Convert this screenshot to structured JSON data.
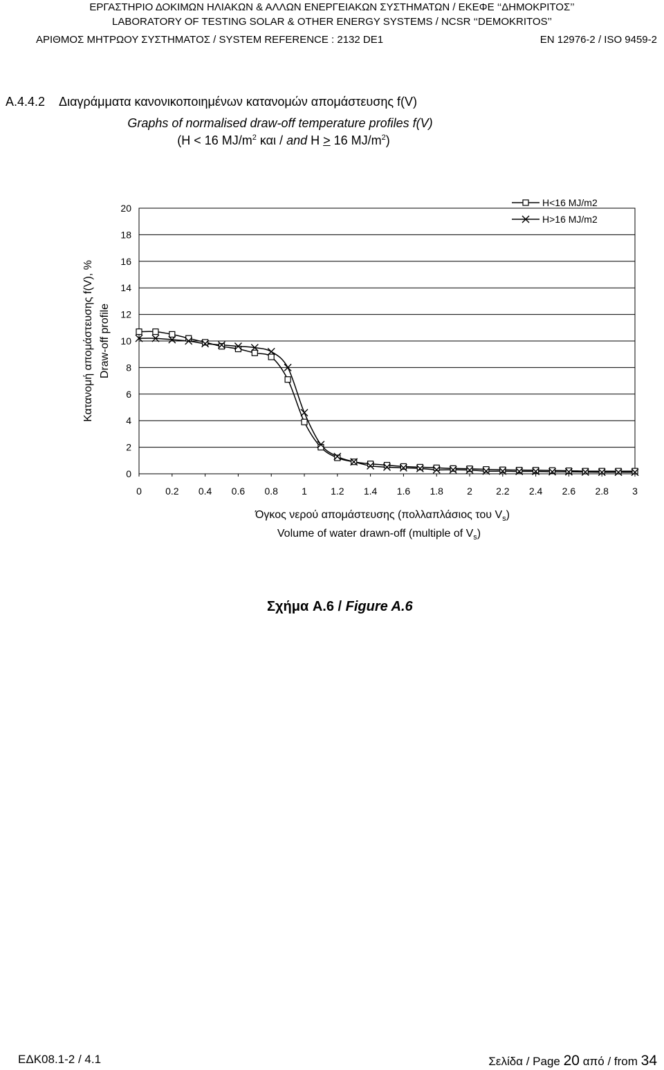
{
  "header": {
    "line1": "ΕΡΓΑΣΤΗΡΙΟ ΔΟΚΙΜΩΝ ΗΛΙΑΚΩΝ & ΑΛΛΩΝ ΕΝΕΡΓΕΙΑΚΩΝ ΣΥΣΤΗΜΑΤΩΝ / ΕΚΕΦΕ ‘‘ΔΗΜΟΚΡΙΤΟΣ’’",
    "line2": "LABORATORY OF TESTING SOLAR & OTHER ENERGY SYSTEMS / NCSR ‘‘DEMOKRITOS’’",
    "line3_left": "ΑΡΙΘΜΟΣ ΜΗΤΡΩΟΥ ΣΥΣΤΗΜΑΤΟΣ / SYSTEM REFERENCE : 2132 DE1",
    "line3_right": "EN 12976-2 / ISO 9459-2"
  },
  "section": {
    "number": "A.4.4.2",
    "title_gr": "Διαγράμματα κανονικοποιημένων κατανομών απομάστευσης f(V)",
    "title_en": "Graphs of normalised draw-off temperature profiles f(V)",
    "cond_prefix": "(H < 16 MJ/m",
    "cond_sup1": "2",
    "cond_mid": " και / ",
    "cond_and": "and",
    "cond_h": " H ",
    "cond_ge": ">",
    "cond_val": " 16 MJ/m",
    "cond_sup2": "2",
    "cond_end": ")"
  },
  "figure": {
    "caption_gr": "Σχήμα A.6 / ",
    "caption_en": "Figure A.6"
  },
  "footer": {
    "doc_code": "ΕΔΚ08.1-2 / 4.1",
    "page_prefix": "Σελίδα / Page",
    "page_num": "20",
    "page_mid": "από / from",
    "page_total": "34"
  },
  "chart_data": {
    "type": "line",
    "title": "",
    "ylabel_gr": "Κατανομή απομάστευσης f(V), %",
    "ylabel_en": "Draw-off profile",
    "xlabel_gr": "Όγκος νερού απομάστευσης (πολλαπλάσιος του V",
    "xlabel_en": "Volume of water drawn-off (multiple of V",
    "xlabel_sub": "s",
    "xlabel_close": ")",
    "xlim": [
      0,
      3
    ],
    "ylim": [
      0,
      20
    ],
    "xticks": [
      "0",
      "0.2",
      "0.4",
      "0.6",
      "0.8",
      "1",
      "1.2",
      "1.4",
      "1.6",
      "1.8",
      "2",
      "2.2",
      "2.4",
      "2.6",
      "2.8",
      "3"
    ],
    "yticks": [
      "0",
      "2",
      "4",
      "6",
      "8",
      "10",
      "12",
      "14",
      "16",
      "18",
      "20"
    ],
    "grid": "horizontal",
    "legend_position": "top-right",
    "x": [
      0,
      0.1,
      0.2,
      0.3,
      0.4,
      0.5,
      0.6,
      0.7,
      0.8,
      0.9,
      1.0,
      1.1,
      1.2,
      1.3,
      1.4,
      1.5,
      1.6,
      1.7,
      1.8,
      1.9,
      2.0,
      2.1,
      2.2,
      2.3,
      2.4,
      2.5,
      2.6,
      2.7,
      2.8,
      2.9,
      3.0
    ],
    "series": [
      {
        "name": "H<16 MJ/m2",
        "marker": "square",
        "values": [
          10.7,
          10.7,
          10.5,
          10.2,
          9.9,
          9.6,
          9.4,
          9.1,
          8.8,
          7.1,
          3.9,
          2.0,
          1.2,
          0.9,
          0.75,
          0.65,
          0.55,
          0.5,
          0.45,
          0.4,
          0.38,
          0.33,
          0.3,
          0.28,
          0.27,
          0.25,
          0.23,
          0.2,
          0.2,
          0.2,
          0.2
        ]
      },
      {
        "name": "H>16 MJ/m2",
        "marker": "cross",
        "values": [
          10.2,
          10.2,
          10.1,
          10.0,
          9.8,
          9.7,
          9.6,
          9.5,
          9.2,
          8.0,
          4.6,
          2.2,
          1.3,
          0.9,
          0.6,
          0.5,
          0.45,
          0.4,
          0.3,
          0.3,
          0.28,
          0.2,
          0.2,
          0.18,
          0.18,
          0.15,
          0.15,
          0.13,
          0.12,
          0.12,
          0.12
        ]
      }
    ]
  }
}
